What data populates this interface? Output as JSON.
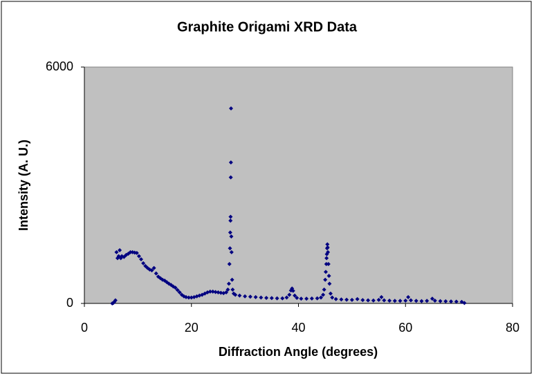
{
  "chart_data": {
    "type": "scatter",
    "title": "Graphite Origami XRD Data",
    "xlabel": "Diffraction Angle (degrees)",
    "ylabel": "Intensity (A. U.)",
    "xlim": [
      0,
      80
    ],
    "xticks": [
      0,
      20,
      40,
      60,
      80
    ],
    "ylim": [
      0,
      6000
    ],
    "yticks": [
      0,
      6000
    ],
    "color": "#000080",
    "background": "#c0c0c0",
    "x": [
      5.2,
      5.4,
      5.6,
      5.8,
      6.0,
      6.2,
      6.4,
      6.6,
      6.8,
      7.0,
      7.4,
      7.8,
      8.2,
      8.6,
      9.0,
      9.4,
      9.8,
      10.2,
      10.6,
      11.0,
      11.4,
      11.8,
      12.2,
      12.6,
      13.0,
      13.4,
      13.8,
      14.2,
      14.6,
      15.0,
      15.4,
      15.8,
      16.2,
      16.6,
      17.0,
      17.4,
      17.8,
      18.2,
      18.6,
      19.0,
      19.5,
      20.0,
      20.5,
      21.0,
      21.5,
      22.0,
      22.5,
      23.0,
      23.5,
      24.0,
      24.5,
      25.0,
      25.5,
      26.0,
      26.5,
      26.8,
      27.0,
      27.1,
      27.2,
      27.25,
      27.3,
      27.32,
      27.35,
      27.38,
      27.4,
      27.45,
      27.5,
      27.6,
      27.7,
      27.9,
      28.2,
      29.0,
      30.0,
      31.0,
      32.0,
      33.0,
      34.0,
      35.0,
      36.0,
      37.0,
      37.8,
      38.3,
      38.6,
      38.8,
      39.0,
      39.3,
      39.7,
      40.5,
      41.5,
      42.5,
      43.5,
      44.2,
      44.6,
      44.8,
      45.0,
      45.1,
      45.2,
      45.25,
      45.3,
      45.35,
      45.4,
      45.45,
      45.5,
      45.6,
      45.7,
      45.8,
      46.0,
      46.3,
      47.0,
      48.0,
      49.0,
      50.0,
      51.0,
      52.0,
      53.0,
      54.0,
      55.0,
      55.5,
      56.0,
      57.0,
      58.0,
      59.0,
      60.0,
      60.5,
      61.0,
      62.0,
      63.0,
      64.0,
      65.0,
      65.5,
      66.5,
      67.5,
      68.5,
      69.5,
      70.5,
      71.0
    ],
    "values": [
      0,
      10,
      40,
      80,
      1300,
      1150,
      1200,
      1350,
      1150,
      1200,
      1180,
      1230,
      1260,
      1300,
      1300,
      1290,
      1280,
      1200,
      1120,
      1020,
      950,
      900,
      860,
      840,
      900,
      760,
      680,
      640,
      600,
      580,
      540,
      500,
      470,
      430,
      400,
      340,
      280,
      220,
      180,
      160,
      150,
      150,
      160,
      180,
      200,
      220,
      250,
      280,
      300,
      300,
      290,
      280,
      270,
      260,
      280,
      350,
      500,
      1000,
      1400,
      1800,
      2100,
      2200,
      3200,
      3580,
      4950,
      1700,
      1300,
      600,
      350,
      250,
      220,
      200,
      180,
      170,
      160,
      150,
      140,
      135,
      130,
      130,
      150,
      220,
      330,
      380,
      320,
      200,
      140,
      120,
      120,
      125,
      130,
      150,
      220,
      350,
      600,
      800,
      1000,
      1150,
      1250,
      1400,
      1500,
      1420,
      1300,
      1000,
      700,
      500,
      250,
      150,
      110,
      100,
      95,
      90,
      110,
      85,
      80,
      75,
      90,
      160,
      80,
      70,
      65,
      65,
      70,
      160,
      80,
      65,
      60,
      65,
      120,
      70,
      60,
      55,
      50,
      45,
      40,
      10
    ]
  }
}
